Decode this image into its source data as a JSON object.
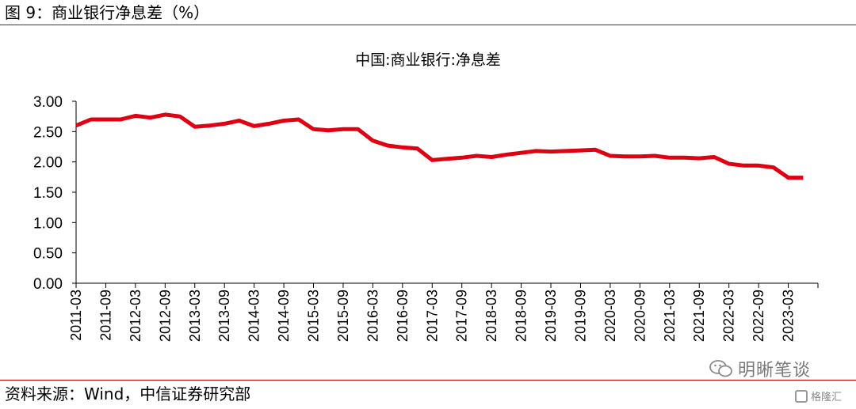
{
  "figure_title": "图 9：商业银行净息差（%）",
  "source": "资料来源：Wind，中信证券研究部",
  "watermark": {
    "main": "明晰笔谈",
    "corner": "格隆汇"
  },
  "colors": {
    "line": "#e00012",
    "rule": "#c00000"
  },
  "chart_data": {
    "type": "line",
    "title": "中国:商业银行:净息差",
    "xlabel": "",
    "ylabel": "",
    "ylim": [
      0,
      3
    ],
    "yticks": [
      "0.00",
      "0.50",
      "1.00",
      "1.50",
      "2.00",
      "2.50",
      "3.00"
    ],
    "grid": false,
    "legend": "none",
    "tick_labels": [
      "2011-03",
      "2011-09",
      "2012-03",
      "2012-09",
      "2013-03",
      "2013-09",
      "2014-03",
      "2014-09",
      "2015-03",
      "2015-09",
      "2016-03",
      "2016-09",
      "2017-03",
      "2017-09",
      "2018-03",
      "2018-09",
      "2019-03",
      "2019-09",
      "2020-03",
      "2020-09",
      "2021-03",
      "2021-09",
      "2022-03",
      "2022-09",
      "2023-03"
    ],
    "x": [
      "2011-03",
      "2011-06",
      "2011-09",
      "2011-12",
      "2012-03",
      "2012-06",
      "2012-09",
      "2012-12",
      "2013-03",
      "2013-06",
      "2013-09",
      "2013-12",
      "2014-03",
      "2014-06",
      "2014-09",
      "2014-12",
      "2015-03",
      "2015-06",
      "2015-09",
      "2015-12",
      "2016-03",
      "2016-06",
      "2016-09",
      "2016-12",
      "2017-03",
      "2017-06",
      "2017-09",
      "2017-12",
      "2018-03",
      "2018-06",
      "2018-09",
      "2018-12",
      "2019-03",
      "2019-06",
      "2019-09",
      "2019-12",
      "2020-03",
      "2020-06",
      "2020-09",
      "2020-12",
      "2021-03",
      "2021-06",
      "2021-09",
      "2021-12",
      "2022-03",
      "2022-06",
      "2022-09",
      "2022-12",
      "2023-03",
      "2023-06"
    ],
    "series": [
      {
        "values": [
          2.6,
          2.7,
          2.7,
          2.7,
          2.76,
          2.73,
          2.78,
          2.75,
          2.58,
          2.6,
          2.63,
          2.68,
          2.59,
          2.63,
          2.68,
          2.7,
          2.54,
          2.52,
          2.54,
          2.54,
          2.35,
          2.27,
          2.24,
          2.22,
          2.03,
          2.05,
          2.07,
          2.1,
          2.08,
          2.12,
          2.15,
          2.18,
          2.17,
          2.18,
          2.19,
          2.2,
          2.1,
          2.09,
          2.09,
          2.1,
          2.07,
          2.07,
          2.06,
          2.08,
          1.97,
          1.94,
          1.94,
          1.91,
          1.74,
          1.74
        ]
      }
    ]
  }
}
